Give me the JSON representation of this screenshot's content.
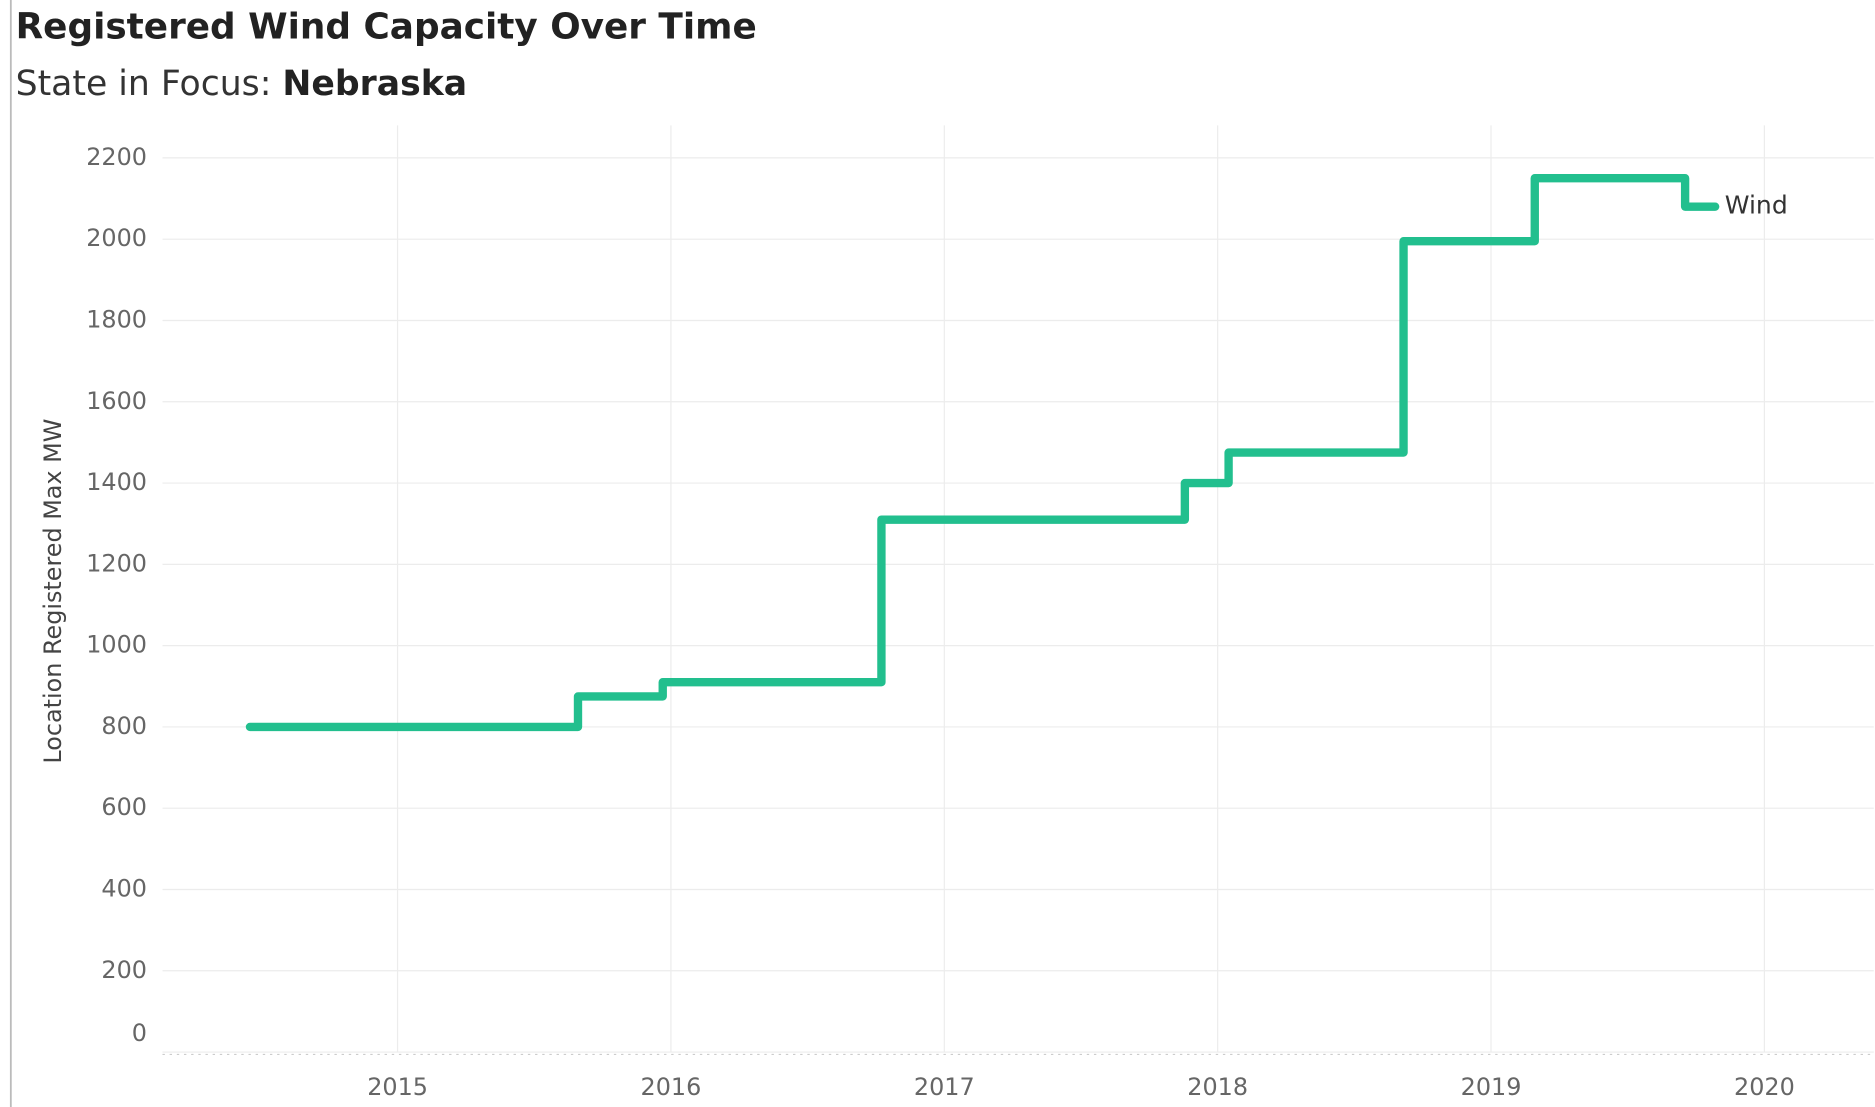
{
  "chart_data": {
    "type": "line",
    "step": "post",
    "title": "Registered Wind Capacity Over Time",
    "subtitle": "State in Focus:",
    "subtitle_focus": "Nebraska",
    "y_label": "Location Registered Max MW",
    "x": [
      2014.46,
      2015.66,
      2015.97,
      2016.77,
      2017.88,
      2018.04,
      2018.68,
      2019.16,
      2019.71,
      2019.82
    ],
    "series": [
      {
        "name": "Wind",
        "color": "#22bf8e",
        "values": [
          800,
          875,
          910,
          1310,
          1400,
          1475,
          1995,
          2150,
          2080,
          2080
        ]
      }
    ],
    "xlim": [
      2014.14,
      2020.4
    ],
    "xticks": [
      2015,
      2016,
      2017,
      2018,
      2019,
      2020
    ],
    "ylim": [
      0,
      2280
    ],
    "yticks": [
      0,
      200,
      400,
      600,
      800,
      1000,
      1200,
      1400,
      1600,
      1800,
      2000,
      2200
    ],
    "grid": true
  }
}
